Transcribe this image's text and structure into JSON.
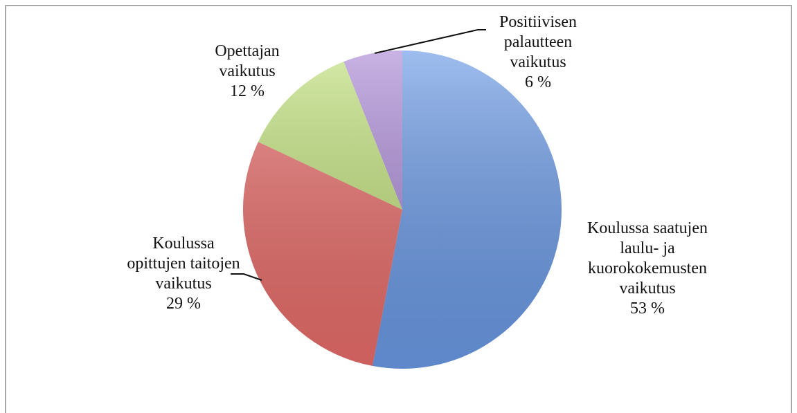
{
  "chart_data": {
    "type": "pie",
    "categories": [
      "Koulussa saatujen\nlaulu- ja\nkuorokokemusten\nvaikutus",
      "Koulussa\nopittujen taitojen\nvaikutus",
      "Opettajan\nvaikutus",
      "Positiivisen\npalautteen\nvaikutus"
    ],
    "values": [
      53,
      29,
      12,
      6
    ],
    "value_labels": [
      "53 %",
      "29 %",
      "12 %",
      "6 %"
    ],
    "colors": [
      "#6b9ae6",
      "#e86d6a",
      "#bfe07a",
      "#ab8ad6"
    ]
  }
}
